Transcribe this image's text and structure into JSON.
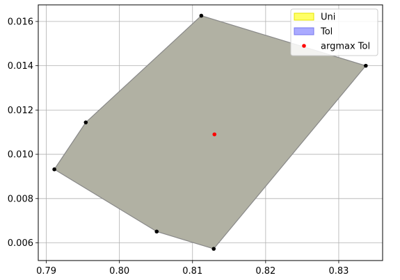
{
  "chart_data": {
    "type": "area",
    "title": "",
    "xlabel": "",
    "ylabel": "",
    "xlim": [
      0.7889,
      0.836
    ],
    "ylim": [
      0.0052,
      0.01675
    ],
    "grid": true,
    "xticks": [
      0.79,
      0.8,
      0.81,
      0.82,
      0.83
    ],
    "xtick_labels": [
      "0.79",
      "0.80",
      "0.81",
      "0.82",
      "0.83"
    ],
    "yticks": [
      0.006,
      0.008,
      0.01,
      0.012,
      0.014,
      0.016
    ],
    "ytick_labels": [
      "0.006",
      "0.008",
      "0.010",
      "0.012",
      "0.014",
      "0.016"
    ],
    "legend_position": "top-right",
    "series": [
      {
        "name": "Uni",
        "kind": "polygon",
        "color": "#ffff00",
        "points": [
          [
            0.7911,
            0.00932
          ],
          [
            0.7954,
            0.01144
          ],
          [
            0.8112,
            0.01626
          ],
          [
            0.8337,
            0.014
          ],
          [
            0.8129,
            0.00573
          ],
          [
            0.8051,
            0.00651
          ]
        ]
      },
      {
        "name": "Tol",
        "kind": "polygon",
        "color": "#0000ff",
        "points": [
          [
            0.7911,
            0.00932
          ],
          [
            0.7954,
            0.01144
          ],
          [
            0.8112,
            0.01626
          ],
          [
            0.8337,
            0.014
          ],
          [
            0.8129,
            0.00573
          ],
          [
            0.8051,
            0.00651
          ]
        ]
      },
      {
        "name": "argmax Tol",
        "kind": "point",
        "color": "#ff0000",
        "points": [
          [
            0.813,
            0.0109
          ]
        ]
      }
    ],
    "vertex_color": "#000000",
    "overlay_color": "#b1b1a3",
    "edge_color": "#888888"
  }
}
